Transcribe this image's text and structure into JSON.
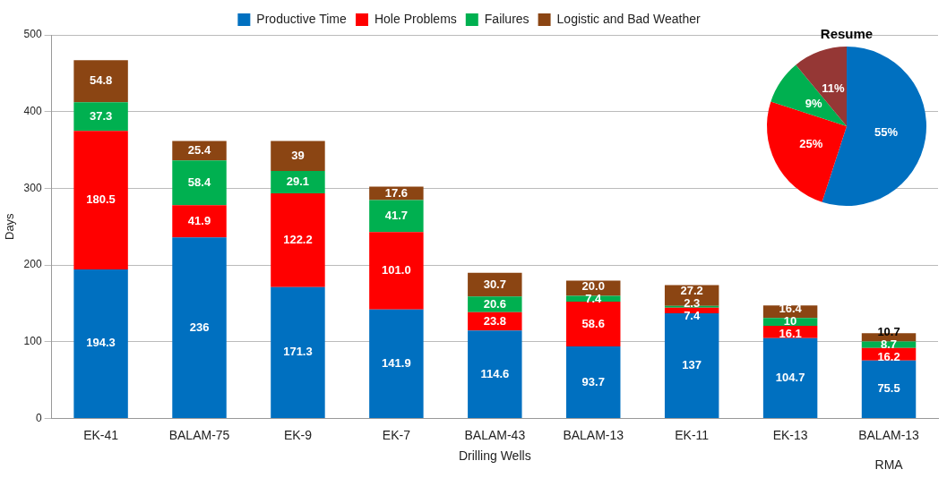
{
  "chart_data": [
    {
      "type": "bar",
      "stacked": true,
      "ylabel": "Days",
      "xlabel": "Drilling Wells",
      "annotations": [
        "RMA"
      ],
      "categories": [
        "EK-41",
        "BALAM-75",
        "EK-9",
        "EK-7",
        "BALAM-43",
        "BALAM-13",
        "EK-11",
        "EK-13",
        "BALAM-13"
      ],
      "ylim": [
        0,
        500
      ],
      "yticks": [
        0,
        100,
        200,
        300,
        400,
        500
      ],
      "grid": "y",
      "legend": "top",
      "series": [
        {
          "name": "Productive Time",
          "color": "#0070c0",
          "values": [
            194.3,
            236,
            171.3,
            141.9,
            114.6,
            93.7,
            137,
            104.7,
            75.5
          ],
          "value_labels": [
            "194.3",
            "236",
            "171.3",
            "141.9",
            "114.6",
            "93.7",
            "137",
            "104.7",
            "75.5"
          ]
        },
        {
          "name": "Hole Problems",
          "color": "#ff0000",
          "values": [
            180.5,
            41.9,
            122.2,
            101.0,
            23.8,
            58.6,
            7.4,
            16.1,
            16.2
          ],
          "value_labels": [
            "180.5",
            "41.9",
            "122.2",
            "101.0",
            "23.8",
            "58.6",
            "7.4",
            "16.1",
            "16.2"
          ]
        },
        {
          "name": "Failures",
          "color": "#00b050",
          "values": [
            37.3,
            58.4,
            29.1,
            41.7,
            20.6,
            7.4,
            2.3,
            10,
            8.7
          ],
          "value_labels": [
            "37.3",
            "58.4",
            "29.1",
            "41.7",
            "20.6",
            "7.4",
            "2.3",
            "10",
            "8.7"
          ]
        },
        {
          "name": "Logistic and Bad Weather",
          "color": "#8b4513",
          "values": [
            54.8,
            25.4,
            39,
            17.6,
            30.7,
            20.0,
            27.2,
            16.4,
            10.7
          ],
          "value_labels": [
            "54.8",
            "25.4",
            "39",
            "17.6",
            "30.7",
            "20.0",
            "27.2",
            "16.4",
            "10.7"
          ]
        }
      ]
    },
    {
      "type": "pie",
      "title": "Resume",
      "categories": [
        null,
        null,
        null,
        null
      ],
      "values": [
        55,
        25,
        9,
        11
      ],
      "colors": [
        "#0070c0",
        "#ff0000",
        "#00b050",
        "#953735"
      ],
      "value_labels": [
        "55%",
        "25%",
        "9%",
        "11%"
      ]
    }
  ]
}
